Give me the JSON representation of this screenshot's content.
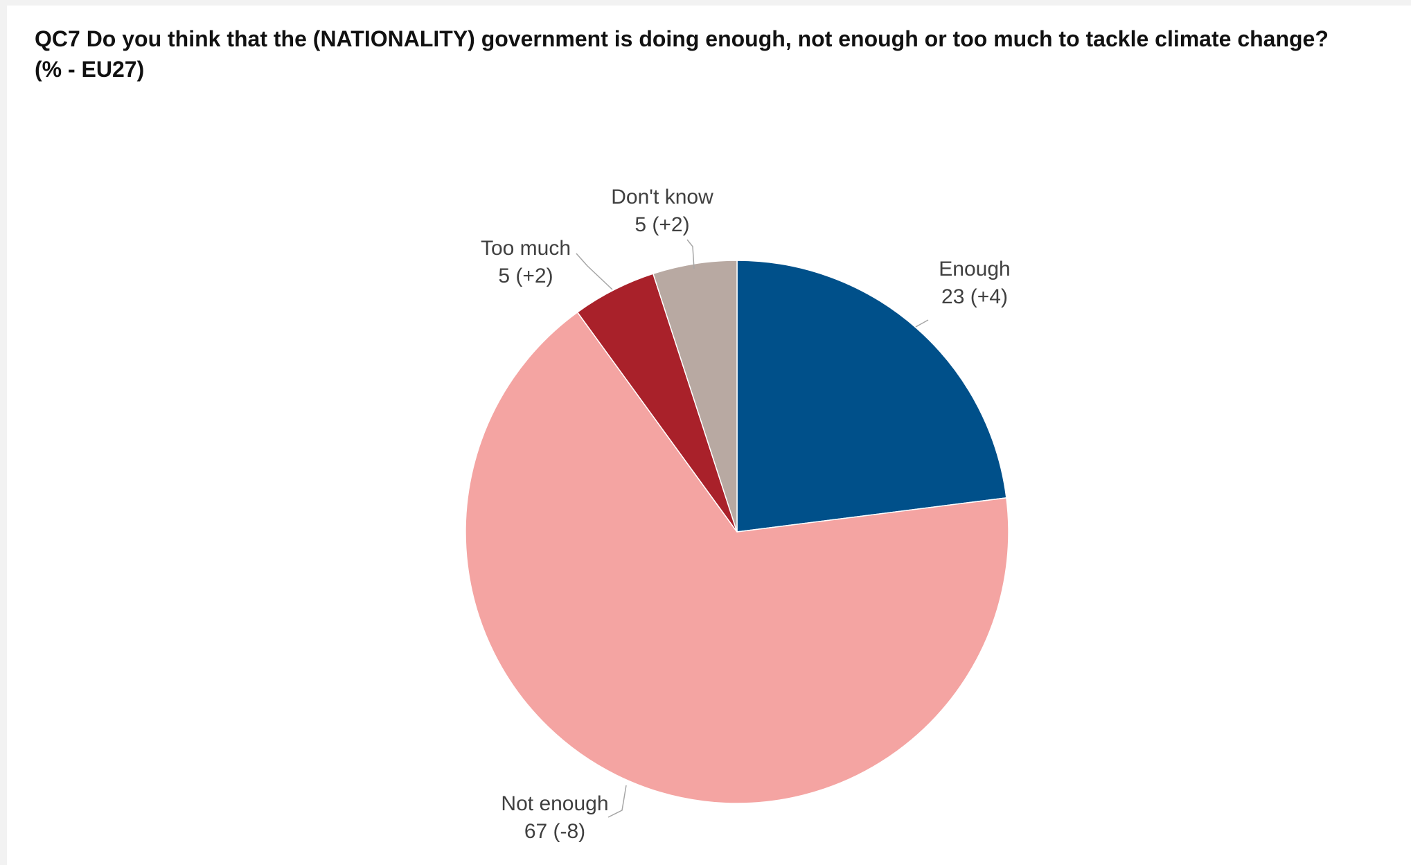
{
  "chart_data": {
    "type": "pie",
    "title": "QC7  Do you think that the (NATIONALITY) government is doing enough, not enough or too much to tackle climate change?",
    "subtitle": "(% - EU27)",
    "start_angle_deg": 0,
    "direction": "clockwise",
    "slices": [
      {
        "label": "Enough",
        "value": 23,
        "change_text": "23 (+4)",
        "color": "#00508a"
      },
      {
        "label": "Not enough",
        "value": 67,
        "change_text": "67 (-8)",
        "color": "#f4a4a2"
      },
      {
        "label": "Too much",
        "value": 5,
        "change_text": "5 (+2)",
        "color": "#a9212a"
      },
      {
        "label": "Don't know",
        "value": 5,
        "change_text": "5 (+2)",
        "color": "#b8a9a2"
      }
    ]
  }
}
